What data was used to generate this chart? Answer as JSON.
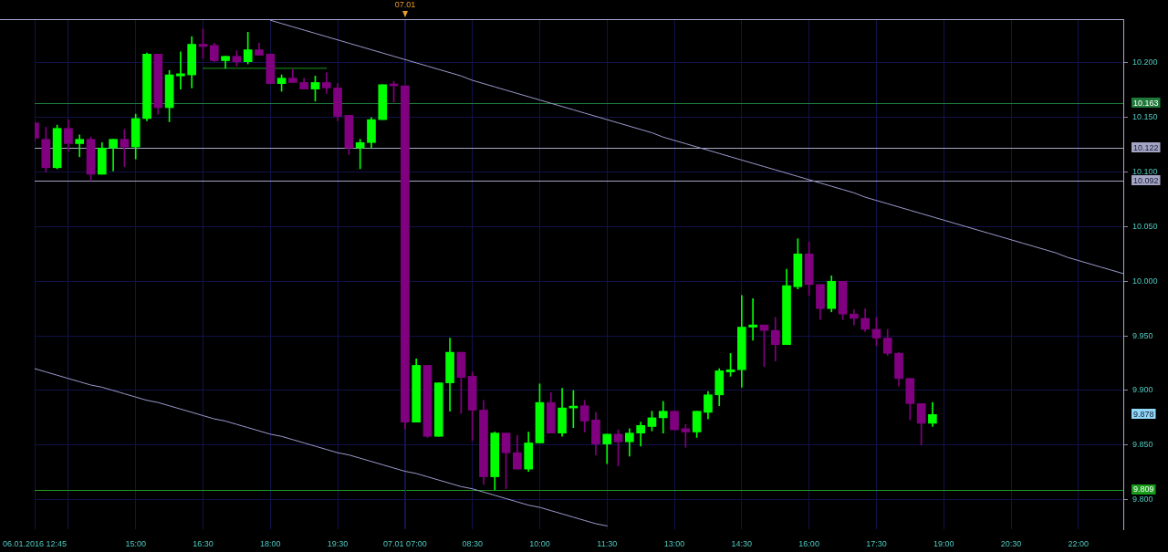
{
  "chart_data": {
    "type": "candlestick",
    "categories": [
      "06.01.2016 12:45",
      null,
      null,
      null,
      null,
      null,
      null,
      null,
      null,
      "15:00",
      null,
      null,
      null,
      null,
      null,
      "16:30",
      null,
      null,
      null,
      null,
      null,
      "18:00",
      null,
      null,
      null,
      null,
      null,
      "19:30",
      null,
      null,
      null,
      null,
      null,
      "07.01 07:00",
      null,
      null,
      null,
      null,
      null,
      "08:30",
      null,
      null,
      null,
      null,
      null,
      "10:00",
      null,
      null,
      null,
      null,
      null,
      "11:30",
      null,
      null,
      null,
      null,
      null,
      "13:00",
      null,
      null,
      null,
      null,
      null,
      "14:30",
      null,
      null,
      null,
      null,
      null,
      "16:00",
      null,
      null,
      null,
      null,
      null,
      "17:30",
      null,
      null,
      null,
      null,
      null,
      "19:00",
      null,
      null,
      null,
      null,
      null,
      "20:30",
      null,
      null,
      null,
      null,
      null,
      "22:00",
      null,
      null,
      null,
      null
    ],
    "ohlc": [
      [
        10.145,
        10.146,
        10.128,
        10.131
      ],
      [
        10.13,
        10.141,
        10.1,
        10.104
      ],
      [
        10.104,
        10.143,
        10.103,
        10.14
      ],
      [
        10.14,
        10.148,
        10.119,
        10.126
      ],
      [
        10.126,
        10.134,
        10.114,
        10.13
      ],
      [
        10.13,
        10.132,
        10.092,
        10.098
      ],
      [
        10.098,
        10.127,
        10.098,
        10.122
      ],
      [
        10.122,
        10.13,
        10.101,
        10.13
      ],
      [
        10.13,
        10.139,
        10.105,
        10.123
      ],
      [
        10.123,
        10.153,
        10.112,
        10.149
      ],
      [
        10.149,
        10.209,
        10.147,
        10.208
      ],
      [
        10.208,
        10.208,
        10.153,
        10.159
      ],
      [
        10.159,
        10.193,
        10.146,
        10.189
      ],
      [
        10.188,
        10.21,
        10.176,
        10.19
      ],
      [
        10.189,
        10.224,
        10.177,
        10.217
      ],
      [
        10.217,
        10.231,
        10.204,
        10.215
      ],
      [
        10.216,
        10.218,
        10.201,
        10.202
      ],
      [
        10.202,
        10.206,
        10.195,
        10.206
      ],
      [
        10.206,
        10.211,
        10.197,
        10.201
      ],
      [
        10.201,
        10.228,
        10.199,
        10.212
      ],
      [
        10.212,
        10.218,
        10.207,
        10.207
      ],
      [
        10.208,
        10.208,
        10.181,
        10.181
      ],
      [
        10.181,
        10.189,
        10.174,
        10.186
      ],
      [
        10.186,
        10.194,
        10.182,
        10.182
      ],
      [
        10.182,
        10.186,
        10.176,
        10.176
      ],
      [
        10.176,
        10.188,
        10.165,
        10.182
      ],
      [
        10.182,
        10.191,
        10.172,
        10.177
      ],
      [
        10.177,
        10.181,
        10.147,
        10.151
      ],
      [
        10.152,
        10.152,
        10.116,
        10.122
      ],
      [
        10.122,
        10.13,
        10.103,
        10.127
      ],
      [
        10.127,
        10.15,
        10.122,
        10.148
      ],
      [
        10.148,
        10.18,
        10.148,
        10.18
      ],
      [
        10.18,
        10.183,
        10.164,
        10.179
      ],
      [
        10.179,
        10.179,
        9.865,
        9.871
      ],
      [
        9.871,
        9.929,
        9.871,
        9.923
      ],
      [
        9.923,
        9.923,
        9.857,
        9.858
      ],
      [
        9.858,
        9.907,
        9.858,
        9.907
      ],
      [
        9.907,
        9.948,
        9.881,
        9.935
      ],
      [
        9.935,
        9.935,
        9.879,
        9.912
      ],
      [
        9.913,
        9.917,
        9.854,
        9.882
      ],
      [
        9.882,
        9.891,
        9.814,
        9.821
      ],
      [
        9.821,
        9.862,
        9.809,
        9.861
      ],
      [
        9.861,
        9.861,
        9.81,
        9.843
      ],
      [
        9.843,
        9.859,
        9.828,
        9.828
      ],
      [
        9.828,
        9.862,
        9.826,
        9.852
      ],
      [
        9.852,
        9.906,
        9.852,
        9.889
      ],
      [
        9.889,
        9.898,
        9.861,
        9.861
      ],
      [
        9.861,
        9.902,
        9.858,
        9.884
      ],
      [
        9.884,
        9.9,
        9.866,
        9.885
      ],
      [
        9.886,
        9.891,
        9.862,
        9.872
      ],
      [
        9.873,
        9.88,
        9.841,
        9.851
      ],
      [
        9.851,
        9.86,
        9.833,
        9.86
      ],
      [
        9.86,
        9.864,
        9.831,
        9.853
      ],
      [
        9.853,
        9.865,
        9.84,
        9.861
      ],
      [
        9.861,
        9.871,
        9.849,
        9.868
      ],
      [
        9.867,
        9.881,
        9.863,
        9.875
      ],
      [
        9.875,
        9.89,
        9.861,
        9.881
      ],
      [
        9.881,
        9.881,
        9.864,
        9.864
      ],
      [
        9.865,
        9.869,
        9.848,
        9.862
      ],
      [
        9.862,
        9.881,
        9.857,
        9.881
      ],
      [
        9.88,
        9.899,
        9.874,
        9.896
      ],
      [
        9.896,
        9.92,
        9.886,
        9.918
      ],
      [
        9.917,
        9.934,
        9.913,
        9.919
      ],
      [
        9.919,
        9.987,
        9.903,
        9.958
      ],
      [
        9.958,
        9.984,
        9.946,
        9.96
      ],
      [
        9.96,
        9.96,
        9.922,
        9.955
      ],
      [
        9.955,
        9.967,
        9.927,
        9.942
      ],
      [
        9.942,
        10.011,
        9.942,
        9.996
      ],
      [
        9.995,
        10.039,
        9.993,
        10.025
      ],
      [
        10.025,
        10.036,
        9.987,
        9.997
      ],
      [
        9.997,
        9.997,
        9.965,
        9.975
      ],
      [
        9.975,
        10.005,
        9.972,
        10.0
      ],
      [
        10.0,
        10.0,
        9.965,
        9.97
      ],
      [
        9.97,
        9.974,
        9.96,
        9.966
      ],
      [
        9.966,
        9.975,
        9.954,
        9.956
      ],
      [
        9.956,
        9.967,
        9.941,
        9.948
      ],
      [
        9.948,
        9.956,
        9.932,
        9.934
      ],
      [
        9.934,
        9.935,
        9.904,
        9.911
      ],
      [
        9.911,
        9.911,
        9.873,
        9.888
      ],
      [
        9.888,
        9.888,
        9.85,
        9.87
      ],
      [
        9.87,
        9.889,
        9.867,
        9.878
      ],
      null,
      null,
      null,
      null,
      null,
      null,
      null,
      null,
      null,
      null,
      null,
      null,
      null,
      null,
      null,
      null,
      null
    ],
    "colors": [
      "#800080",
      "#800080",
      "#00ff00",
      "#800080",
      "#00ff00",
      "#800080",
      "#00ff00",
      "#00ff00",
      "#800080",
      "#00ff00",
      "#00ff00",
      "#800080",
      "#00ff00",
      "#00ff00",
      "#00ff00",
      "#800080",
      "#800080",
      "#00ff00",
      "#800080",
      "#00ff00",
      "#800080",
      "#800080",
      "#00ff00",
      "#800080",
      "#800080",
      "#00ff00",
      "#800080",
      "#800080",
      "#800080",
      "#00ff00",
      "#00ff00",
      "#00ff00",
      "#800080",
      "#800080",
      "#00ff00",
      "#800080",
      "#00ff00",
      "#00ff00",
      "#800080",
      "#800080",
      "#800080",
      "#00ff00",
      "#800080",
      "#800080",
      "#00ff00",
      "#00ff00",
      "#800080",
      "#00ff00",
      "#00ff00",
      "#800080",
      "#800080",
      "#00ff00",
      "#800080",
      "#00ff00",
      "#00ff00",
      "#00ff00",
      "#00ff00",
      "#800080",
      "#800080",
      "#00ff00",
      "#00ff00",
      "#00ff00",
      "#00ff00",
      "#00ff00",
      "#00ff00",
      "#800080",
      "#800080",
      "#00ff00",
      "#00ff00",
      "#800080",
      "#800080",
      "#00ff00",
      "#800080",
      "#800080",
      "#800080",
      "#800080",
      "#800080",
      "#800080",
      "#800080",
      "#800080",
      "#00ff00",
      null,
      null,
      null,
      null,
      null,
      null,
      null,
      null,
      null,
      null,
      null,
      null,
      null,
      null,
      null,
      null,
      null
    ],
    "ylim": [
      9.773,
      10.24
    ],
    "yticks": [
      {
        "value": 9.8,
        "label": "9.800"
      },
      {
        "value": 9.85,
        "label": "9.850"
      },
      {
        "value": 9.9,
        "label": "9.900"
      },
      {
        "value": 9.95,
        "label": "9.950"
      },
      {
        "value": 10.0,
        "label": "10.000"
      },
      {
        "value": 10.05,
        "label": "10.050"
      },
      {
        "value": 10.1,
        "label": "10.100"
      },
      {
        "value": 10.15,
        "label": "10.150"
      },
      {
        "value": 10.2,
        "label": "10.200"
      }
    ],
    "grid": true,
    "series": [
      {
        "type": "line",
        "color": "#9a9acc",
        "marker": "none",
        "values": [
          null,
          null,
          null,
          null,
          null,
          null,
          null,
          null,
          null,
          null,
          null,
          null,
          null,
          null,
          null,
          null,
          null,
          null,
          null,
          null,
          null,
          10.239,
          10.236,
          10.233,
          10.23,
          10.227,
          10.224,
          10.221,
          10.218,
          10.215,
          10.212,
          10.209,
          10.206,
          10.203,
          10.2,
          10.197,
          10.194,
          10.191,
          10.188,
          10.184,
          10.181,
          10.178,
          10.175,
          10.172,
          10.169,
          10.166,
          10.163,
          10.16,
          10.157,
          10.154,
          10.151,
          10.148,
          10.145,
          10.142,
          10.139,
          10.136,
          10.132,
          10.129,
          10.126,
          10.123,
          10.12,
          10.117,
          10.114,
          10.111,
          10.108,
          10.105,
          10.102,
          10.099,
          10.096,
          10.093,
          10.09,
          10.087,
          10.084,
          10.081,
          10.077,
          10.074,
          10.071,
          10.068,
          10.065,
          10.062,
          10.059,
          10.056,
          10.053,
          10.05,
          10.047,
          10.044,
          10.041,
          10.038,
          10.035,
          10.032,
          10.029,
          10.026,
          10.022,
          10.019,
          10.016,
          10.013,
          10.01,
          10.007
        ]
      },
      {
        "type": "line",
        "color": "#9a9acc",
        "marker": "none",
        "values": [
          9.92,
          9.917,
          9.914,
          9.911,
          9.908,
          9.905,
          9.903,
          9.9,
          9.897,
          9.894,
          9.891,
          9.889,
          9.886,
          9.883,
          9.88,
          9.877,
          9.874,
          9.872,
          9.869,
          9.866,
          9.863,
          9.86,
          9.858,
          9.855,
          9.852,
          9.849,
          9.846,
          9.843,
          9.841,
          9.838,
          9.835,
          9.832,
          9.829,
          9.826,
          9.824,
          9.821,
          9.818,
          9.815,
          9.812,
          9.81,
          9.807,
          9.804,
          9.801,
          9.798,
          9.795,
          9.793,
          9.79,
          9.787,
          9.784,
          9.781,
          9.778,
          9.776,
          null,
          null,
          null,
          null,
          null,
          null,
          null,
          null,
          null,
          null,
          null,
          null,
          null,
          null,
          null,
          null,
          null,
          null,
          null,
          null,
          null,
          null,
          null,
          null,
          null,
          null,
          null,
          null,
          null,
          null,
          null,
          null,
          null,
          null,
          null,
          null,
          null,
          null,
          null,
          null,
          null,
          null,
          null,
          null,
          null,
          null
        ]
      },
      {
        "type": "line",
        "color": "#1a9a1a",
        "marker": "none",
        "values": [
          null,
          null,
          null,
          null,
          null,
          null,
          null,
          null,
          null,
          null,
          null,
          null,
          null,
          null,
          null,
          10.195,
          10.195,
          10.195,
          10.195,
          10.195,
          10.195,
          10.195,
          10.195,
          10.195,
          10.195,
          10.195,
          10.195,
          null,
          null,
          null,
          null,
          null,
          null,
          null,
          null,
          null,
          null,
          null,
          null,
          null,
          null,
          null,
          null,
          null,
          null,
          null,
          null,
          null,
          null,
          null,
          null,
          null,
          null,
          null,
          null,
          null,
          null,
          null,
          null,
          null,
          null,
          null,
          null,
          null,
          null,
          null,
          null,
          null,
          null,
          null,
          null,
          null,
          null,
          null,
          null,
          null,
          null,
          null,
          null,
          null,
          null,
          null,
          null,
          null,
          null,
          null,
          null,
          null,
          null,
          null,
          null,
          null,
          null,
          null,
          null,
          null,
          null,
          null
        ]
      }
    ],
    "ref_lines": [
      {
        "axis": "y",
        "value": 10.163,
        "label": "10.163",
        "color": "#1f7a3a"
      },
      {
        "axis": "y",
        "value": 10.122,
        "label": "10.122",
        "color": "#a4a4c4"
      },
      {
        "axis": "y",
        "value": 10.092,
        "label": "10.092",
        "color": "#a4a4c4"
      },
      {
        "axis": "y",
        "value": 9.809,
        "label": "9.809",
        "color": "#1a9a1a"
      },
      {
        "axis": "x",
        "value": "07.01 07:00",
        "label": "07.01",
        "color": "#14144e"
      }
    ],
    "annotations": [
      "9.878"
    ]
  }
}
